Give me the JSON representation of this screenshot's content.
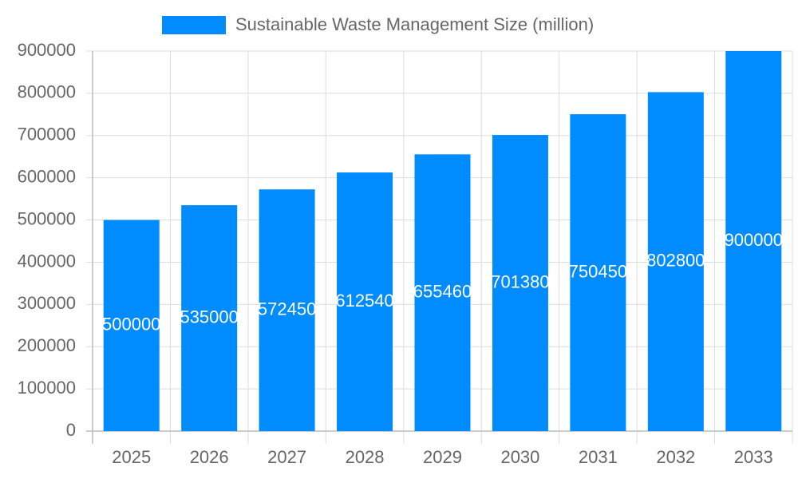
{
  "chart_data": {
    "type": "bar",
    "categories": [
      "2025",
      "2026",
      "2027",
      "2028",
      "2029",
      "2030",
      "2031",
      "2032",
      "2033"
    ],
    "series": [
      {
        "name": "Sustainable Waste Management Size (million)",
        "color": "#008cff",
        "values": [
          500000,
          535000,
          572450,
          612540,
          655460,
          701380,
          750450,
          802800,
          900000
        ]
      }
    ],
    "ylim": [
      0,
      900000
    ],
    "yticks": [
      0,
      100000,
      200000,
      300000,
      400000,
      500000,
      600000,
      700000,
      800000,
      900000
    ],
    "grid": true,
    "legend": "top"
  }
}
